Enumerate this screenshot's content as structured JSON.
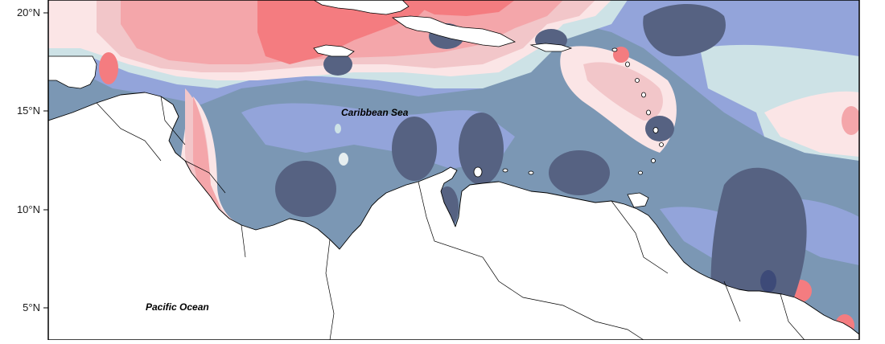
{
  "map": {
    "y_axis_ticks": [
      "20°N",
      "15°N",
      "10°N",
      "5°N"
    ],
    "labels": {
      "caribbean_sea": "Caribbean Sea",
      "pacific_ocean": "Pacific Ocean"
    },
    "colors": {
      "strong_positive": "#f47c80",
      "positive": "#f4a6aa",
      "weak_positive": "#f2c6c9",
      "near_zero_positive": "#fbe5e6",
      "near_zero_negative": "#cde2e6",
      "weak_negative": "#93a4da",
      "negative": "#7b97b4",
      "strong_negative": "#566282",
      "land": "#ffffff",
      "coastline": "#000000"
    }
  }
}
